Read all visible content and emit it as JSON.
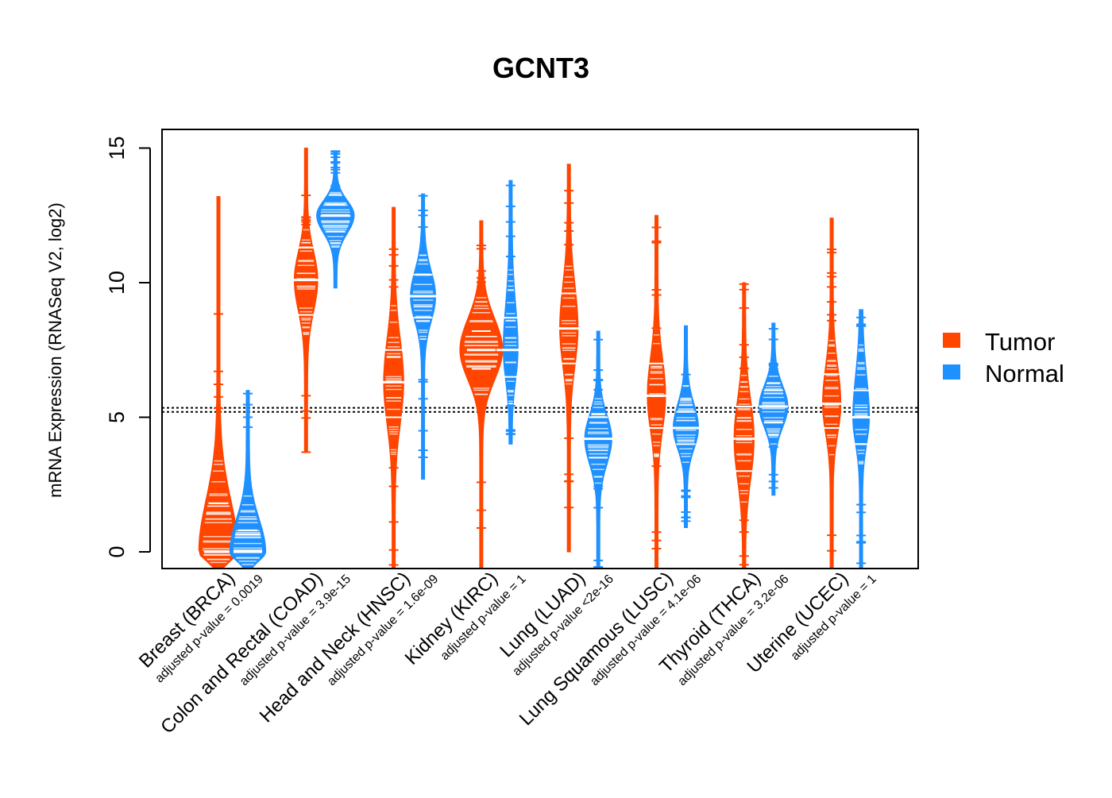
{
  "chart_data": {
    "type": "violin",
    "title": "GCNT3",
    "ylabel": "mRNA Expression (RNASeq V2, log2)",
    "xlabel": "",
    "ylim": [
      -0.6,
      15.7
    ],
    "yticks": [
      "0",
      "5",
      "10",
      "15"
    ],
    "reference_lines": [
      5.2,
      5.35
    ],
    "legend": {
      "placement": "right",
      "entries": [
        {
          "name": "Tumor",
          "color": "#ff4500"
        },
        {
          "name": "Normal",
          "color": "#1e90ff"
        }
      ]
    },
    "categories": [
      {
        "label": "Breast (BRCA)",
        "pvalue": "adjusted p-value = 0.0019",
        "tumor": {
          "min": -0.6,
          "max": 13.2,
          "median": 0.0,
          "q1": 0.0,
          "q3": 1.8,
          "dense_low": -0.6,
          "dense_high": 3.5,
          "width": 0.9
        },
        "normal": {
          "min": -0.6,
          "max": 6.0,
          "median": 0.0,
          "q1": 0.0,
          "q3": 0.8,
          "dense_low": -0.6,
          "dense_high": 2.2,
          "width": 0.8
        }
      },
      {
        "label": "Colon and Rectal (COAD)",
        "pvalue": "adjusted p-value = 3.9e-15",
        "tumor": {
          "min": 3.7,
          "max": 15.0,
          "median": 10.1,
          "q1": 8.8,
          "q3": 11.3,
          "dense_low": 8.0,
          "dense_high": 12.0,
          "width": 0.45
        },
        "normal": {
          "min": 9.8,
          "max": 14.9,
          "median": 12.5,
          "q1": 11.9,
          "q3": 12.9,
          "dense_low": 11.3,
          "dense_high": 13.5,
          "width": 0.85
        }
      },
      {
        "label": "Head and Neck (HNSC)",
        "pvalue": "adjusted p-value = 1.6e-09",
        "tumor": {
          "min": -0.6,
          "max": 12.8,
          "median": 6.3,
          "q1": 5.0,
          "q3": 7.5,
          "dense_low": 3.5,
          "dense_high": 9.2,
          "width": 0.35
        },
        "normal": {
          "min": 2.7,
          "max": 13.3,
          "median": 9.5,
          "q1": 8.7,
          "q3": 10.3,
          "dense_low": 7.8,
          "dense_high": 11.2,
          "width": 0.5
        }
      },
      {
        "label": "Kidney (KIRC)",
        "pvalue": "adjusted p-value = 1",
        "tumor": {
          "min": -0.6,
          "max": 12.3,
          "median": 7.5,
          "q1": 6.8,
          "q3": 8.2,
          "dense_low": 5.5,
          "dense_high": 9.6,
          "width": 1.0
        },
        "normal": {
          "min": 4.0,
          "max": 13.8,
          "median": 7.5,
          "q1": 6.5,
          "q3": 8.7,
          "dense_low": 5.5,
          "dense_high": 10.5,
          "width": 0.2
        }
      },
      {
        "label": "Lung (LUAD)",
        "pvalue": "adjusted p-value <2e-16",
        "tumor": {
          "min": 0.0,
          "max": 14.4,
          "median": 8.3,
          "q1": 7.0,
          "q3": 9.6,
          "dense_low": 5.8,
          "dense_high": 11.2,
          "width": 0.3
        },
        "normal": {
          "min": -0.6,
          "max": 8.2,
          "median": 4.2,
          "q1": 3.5,
          "q3": 5.0,
          "dense_low": 2.5,
          "dense_high": 5.8,
          "width": 0.55
        }
      },
      {
        "label": "Lung Squamous (LUSC)",
        "pvalue": "adjusted p-value = 4.1e-06",
        "tumor": {
          "min": -0.6,
          "max": 12.5,
          "median": 5.8,
          "q1": 4.6,
          "q3": 7.0,
          "dense_low": 3.5,
          "dense_high": 8.3,
          "width": 0.3
        },
        "normal": {
          "min": 0.9,
          "max": 8.4,
          "median": 4.6,
          "q1": 4.0,
          "q3": 5.2,
          "dense_low": 3.2,
          "dense_high": 6.2,
          "width": 0.5
        }
      },
      {
        "label": "Thyroid (THCA)",
        "pvalue": "adjusted p-value = 3.2e-06",
        "tumor": {
          "min": -0.6,
          "max": 10.0,
          "median": 4.2,
          "q1": 3.0,
          "q3": 5.4,
          "dense_low": 1.5,
          "dense_high": 6.8,
          "width": 0.35
        },
        "normal": {
          "min": 2.1,
          "max": 8.5,
          "median": 5.4,
          "q1": 4.8,
          "q3": 6.0,
          "dense_low": 4.0,
          "dense_high": 6.8,
          "width": 0.6
        }
      },
      {
        "label": "Uterine (UCEC)",
        "pvalue": "adjusted p-value = 1",
        "tumor": {
          "min": -0.6,
          "max": 12.4,
          "median": 5.5,
          "q1": 4.6,
          "q3": 6.6,
          "dense_low": 3.5,
          "dense_high": 8.0,
          "width": 0.3
        },
        "normal": {
          "min": -0.6,
          "max": 9.0,
          "median": 5.0,
          "q1": 4.0,
          "q3": 6.0,
          "dense_low": 3.2,
          "dense_high": 7.8,
          "width": 0.25
        }
      }
    ]
  }
}
